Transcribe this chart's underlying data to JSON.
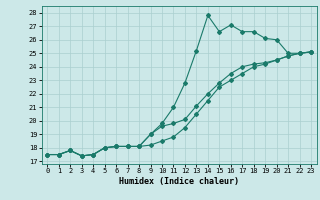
{
  "xlabel": "Humidex (Indice chaleur)",
  "bg_color": "#cce8e8",
  "grid_color": "#aacfcf",
  "line_color": "#1a7a6a",
  "xlim": [
    -0.5,
    23.5
  ],
  "ylim": [
    16.8,
    28.5
  ],
  "yticks": [
    17,
    18,
    19,
    20,
    21,
    22,
    23,
    24,
    25,
    26,
    27,
    28
  ],
  "xticks": [
    0,
    1,
    2,
    3,
    4,
    5,
    6,
    7,
    8,
    9,
    10,
    11,
    12,
    13,
    14,
    15,
    16,
    17,
    18,
    19,
    20,
    21,
    22,
    23
  ],
  "series1_x": [
    0,
    1,
    2,
    3,
    4,
    5,
    6,
    7,
    8,
    9,
    10,
    11,
    12,
    13,
    14,
    15,
    16,
    17,
    18,
    19,
    20,
    21,
    22,
    23
  ],
  "series1_y": [
    17.5,
    17.5,
    17.8,
    17.4,
    17.5,
    18.0,
    18.1,
    18.1,
    18.1,
    19.0,
    19.8,
    21.0,
    22.8,
    25.2,
    27.8,
    26.6,
    27.1,
    26.6,
    26.6,
    26.1,
    26.0,
    25.0,
    25.0,
    25.1
  ],
  "series2_x": [
    0,
    1,
    2,
    3,
    4,
    5,
    6,
    7,
    8,
    9,
    10,
    11,
    12,
    13,
    14,
    15,
    16,
    17,
    18,
    19,
    20,
    21,
    22,
    23
  ],
  "series2_y": [
    17.5,
    17.5,
    17.8,
    17.4,
    17.5,
    18.0,
    18.1,
    18.1,
    18.1,
    19.0,
    19.6,
    19.8,
    20.1,
    21.1,
    22.0,
    22.8,
    23.5,
    24.0,
    24.2,
    24.3,
    24.5,
    24.8,
    25.0,
    25.1
  ],
  "series3_x": [
    0,
    1,
    2,
    3,
    4,
    5,
    6,
    7,
    8,
    9,
    10,
    11,
    12,
    13,
    14,
    15,
    16,
    17,
    18,
    19,
    20,
    21,
    22,
    23
  ],
  "series3_y": [
    17.5,
    17.5,
    17.8,
    17.4,
    17.5,
    18.0,
    18.1,
    18.1,
    18.1,
    18.2,
    18.5,
    18.8,
    19.5,
    20.5,
    21.5,
    22.5,
    23.0,
    23.5,
    24.0,
    24.2,
    24.5,
    24.8,
    25.0,
    25.1
  ]
}
